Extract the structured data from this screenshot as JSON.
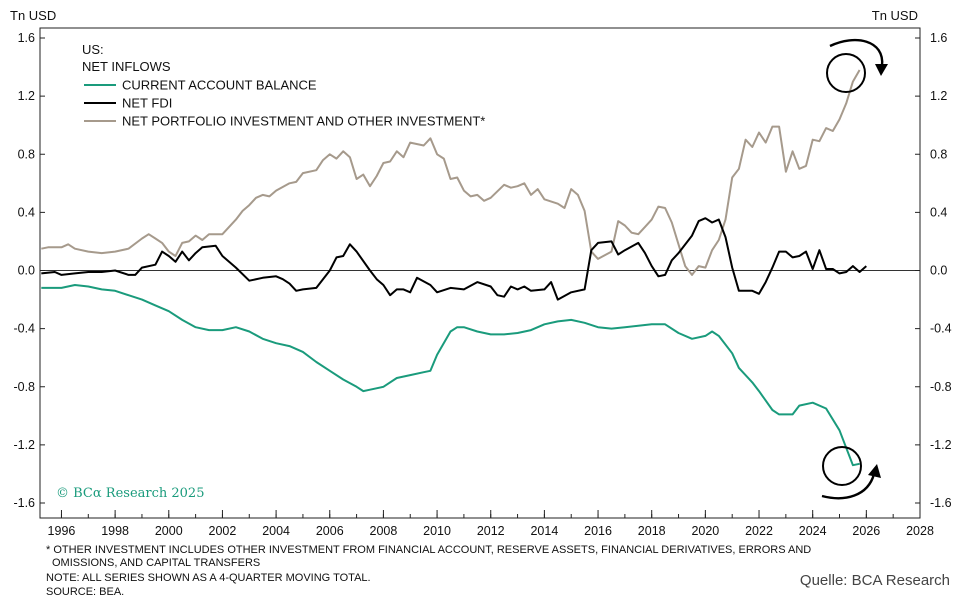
{
  "chart_data": {
    "type": "line",
    "title": "US:",
    "subtitle": "NET INFLOWS",
    "y_unit_left": "Tn USD",
    "y_unit_right": "Tn USD",
    "ylim": [
      -1.6,
      1.6
    ],
    "yticks": [
      1.6,
      1.2,
      0.8,
      0.4,
      0.0,
      -0.4,
      -0.8,
      -1.2,
      -1.6
    ],
    "ytick_labels": [
      "1.6",
      "1.2",
      "0.8",
      "0.4",
      "0.0",
      "-0.4",
      "-0.8",
      "-1.2",
      "-1.6"
    ],
    "xlim": [
      1995.2,
      2028.0
    ],
    "xticks": [
      1996,
      1998,
      2000,
      2002,
      2004,
      2006,
      2008,
      2010,
      2012,
      2014,
      2016,
      2018,
      2020,
      2022,
      2024,
      2026,
      2028
    ],
    "xtick_labels": [
      "1996",
      "1998",
      "2000",
      "2002",
      "2004",
      "2006",
      "2008",
      "2010",
      "2012",
      "2014",
      "2016",
      "2018",
      "2020",
      "2022",
      "2024",
      "2026",
      "2028"
    ],
    "legend_position": "top-left",
    "series": [
      {
        "name": "CURRENT ACCOUNT BALANCE",
        "color": "#1a9b7c",
        "points": [
          [
            1995.25,
            -0.12
          ],
          [
            1996.0,
            -0.12
          ],
          [
            1996.5,
            -0.1
          ],
          [
            1997.0,
            -0.11
          ],
          [
            1997.5,
            -0.13
          ],
          [
            1998.0,
            -0.14
          ],
          [
            1998.5,
            -0.17
          ],
          [
            1999.0,
            -0.2
          ],
          [
            1999.5,
            -0.24
          ],
          [
            2000.0,
            -0.28
          ],
          [
            2000.5,
            -0.34
          ],
          [
            2001.0,
            -0.39
          ],
          [
            2001.5,
            -0.41
          ],
          [
            2002.0,
            -0.41
          ],
          [
            2002.5,
            -0.39
          ],
          [
            2003.0,
            -0.42
          ],
          [
            2003.5,
            -0.47
          ],
          [
            2004.0,
            -0.5
          ],
          [
            2004.5,
            -0.52
          ],
          [
            2005.0,
            -0.56
          ],
          [
            2005.5,
            -0.63
          ],
          [
            2006.0,
            -0.69
          ],
          [
            2006.5,
            -0.75
          ],
          [
            2007.0,
            -0.8
          ],
          [
            2007.25,
            -0.83
          ],
          [
            2007.5,
            -0.82
          ],
          [
            2008.0,
            -0.8
          ],
          [
            2008.5,
            -0.74
          ],
          [
            2009.0,
            -0.72
          ],
          [
            2009.5,
            -0.7
          ],
          [
            2009.75,
            -0.69
          ],
          [
            2010.0,
            -0.58
          ],
          [
            2010.5,
            -0.42
          ],
          [
            2010.75,
            -0.39
          ],
          [
            2011.0,
            -0.39
          ],
          [
            2011.5,
            -0.42
          ],
          [
            2012.0,
            -0.44
          ],
          [
            2012.5,
            -0.44
          ],
          [
            2013.0,
            -0.43
          ],
          [
            2013.5,
            -0.41
          ],
          [
            2014.0,
            -0.37
          ],
          [
            2014.5,
            -0.35
          ],
          [
            2015.0,
            -0.34
          ],
          [
            2015.5,
            -0.36
          ],
          [
            2016.0,
            -0.39
          ],
          [
            2016.5,
            -0.4
          ],
          [
            2017.0,
            -0.39
          ],
          [
            2017.5,
            -0.38
          ],
          [
            2018.0,
            -0.37
          ],
          [
            2018.5,
            -0.37
          ],
          [
            2019.0,
            -0.43
          ],
          [
            2019.5,
            -0.47
          ],
          [
            2020.0,
            -0.45
          ],
          [
            2020.25,
            -0.42
          ],
          [
            2020.5,
            -0.45
          ],
          [
            2021.0,
            -0.57
          ],
          [
            2021.25,
            -0.67
          ],
          [
            2021.75,
            -0.77
          ],
          [
            2022.0,
            -0.83
          ],
          [
            2022.5,
            -0.96
          ],
          [
            2022.75,
            -0.99
          ],
          [
            2023.25,
            -0.99
          ],
          [
            2023.5,
            -0.93
          ],
          [
            2024.0,
            -0.91
          ],
          [
            2024.5,
            -0.95
          ],
          [
            2025.0,
            -1.1
          ],
          [
            2025.25,
            -1.22
          ],
          [
            2025.5,
            -1.34
          ],
          [
            2025.75,
            -1.33
          ]
        ]
      },
      {
        "name": "NET FDI",
        "color": "#000000",
        "points": [
          [
            1995.25,
            -0.02
          ],
          [
            1995.75,
            -0.01
          ],
          [
            1996.0,
            -0.03
          ],
          [
            1996.5,
            -0.02
          ],
          [
            1997.0,
            -0.01
          ],
          [
            1997.5,
            -0.01
          ],
          [
            1998.0,
            0.0
          ],
          [
            1998.5,
            -0.03
          ],
          [
            1998.75,
            -0.03
          ],
          [
            1999.0,
            0.02
          ],
          [
            1999.5,
            0.04
          ],
          [
            1999.75,
            0.13
          ],
          [
            2000.0,
            0.1
          ],
          [
            2000.25,
            0.06
          ],
          [
            2000.5,
            0.13
          ],
          [
            2000.75,
            0.07
          ],
          [
            2001.0,
            0.12
          ],
          [
            2001.25,
            0.16
          ],
          [
            2001.75,
            0.17
          ],
          [
            2002.0,
            0.1
          ],
          [
            2002.5,
            0.02
          ],
          [
            2003.0,
            -0.07
          ],
          [
            2003.5,
            -0.05
          ],
          [
            2004.0,
            -0.04
          ],
          [
            2004.25,
            -0.06
          ],
          [
            2004.5,
            -0.09
          ],
          [
            2004.75,
            -0.14
          ],
          [
            2005.0,
            -0.13
          ],
          [
            2005.5,
            -0.12
          ],
          [
            2006.0,
            0.0
          ],
          [
            2006.25,
            0.09
          ],
          [
            2006.5,
            0.1
          ],
          [
            2006.75,
            0.18
          ],
          [
            2007.0,
            0.13
          ],
          [
            2007.5,
            0.0
          ],
          [
            2007.75,
            -0.06
          ],
          [
            2008.0,
            -0.1
          ],
          [
            2008.25,
            -0.17
          ],
          [
            2008.5,
            -0.13
          ],
          [
            2008.75,
            -0.13
          ],
          [
            2009.0,
            -0.15
          ],
          [
            2009.25,
            -0.05
          ],
          [
            2009.75,
            -0.1
          ],
          [
            2010.0,
            -0.15
          ],
          [
            2010.5,
            -0.12
          ],
          [
            2011.0,
            -0.13
          ],
          [
            2011.5,
            -0.08
          ],
          [
            2012.0,
            -0.11
          ],
          [
            2012.25,
            -0.17
          ],
          [
            2012.5,
            -0.18
          ],
          [
            2012.75,
            -0.11
          ],
          [
            2013.0,
            -0.13
          ],
          [
            2013.25,
            -0.11
          ],
          [
            2013.5,
            -0.14
          ],
          [
            2014.0,
            -0.13
          ],
          [
            2014.25,
            -0.08
          ],
          [
            2014.5,
            -0.2
          ],
          [
            2015.0,
            -0.15
          ],
          [
            2015.5,
            -0.13
          ],
          [
            2015.75,
            0.14
          ],
          [
            2016.0,
            0.19
          ],
          [
            2016.5,
            0.2
          ],
          [
            2016.75,
            0.11
          ],
          [
            2017.0,
            0.14
          ],
          [
            2017.5,
            0.19
          ],
          [
            2017.75,
            0.12
          ],
          [
            2018.0,
            0.03
          ],
          [
            2018.25,
            -0.04
          ],
          [
            2018.5,
            -0.03
          ],
          [
            2018.75,
            0.07
          ],
          [
            2019.0,
            0.12
          ],
          [
            2019.5,
            0.24
          ],
          [
            2019.75,
            0.34
          ],
          [
            2020.0,
            0.36
          ],
          [
            2020.25,
            0.33
          ],
          [
            2020.5,
            0.35
          ],
          [
            2020.75,
            0.23
          ],
          [
            2021.0,
            0.02
          ],
          [
            2021.25,
            -0.14
          ],
          [
            2021.75,
            -0.14
          ],
          [
            2022.0,
            -0.16
          ],
          [
            2022.25,
            -0.08
          ],
          [
            2022.5,
            0.02
          ],
          [
            2022.75,
            0.13
          ],
          [
            2023.0,
            0.13
          ],
          [
            2023.25,
            0.09
          ],
          [
            2023.5,
            0.1
          ],
          [
            2023.75,
            0.13
          ],
          [
            2024.0,
            0.01
          ],
          [
            2024.25,
            0.14
          ],
          [
            2024.5,
            0.01
          ],
          [
            2024.75,
            0.01
          ],
          [
            2025.0,
            -0.02
          ],
          [
            2025.25,
            -0.01
          ],
          [
            2025.5,
            0.03
          ],
          [
            2025.75,
            -0.01
          ],
          [
            2026.0,
            0.03
          ]
        ]
      },
      {
        "name": "NET PORTFOLIO INVESTMENT AND OTHER INVESTMENT*",
        "color": "#a69a8c",
        "points": [
          [
            1995.25,
            0.15
          ],
          [
            1995.5,
            0.16
          ],
          [
            1996.0,
            0.16
          ],
          [
            1996.25,
            0.18
          ],
          [
            1996.5,
            0.15
          ],
          [
            1997.0,
            0.13
          ],
          [
            1997.5,
            0.12
          ],
          [
            1998.0,
            0.13
          ],
          [
            1998.5,
            0.15
          ],
          [
            1999.0,
            0.22
          ],
          [
            1999.25,
            0.25
          ],
          [
            1999.5,
            0.22
          ],
          [
            1999.75,
            0.19
          ],
          [
            2000.0,
            0.13
          ],
          [
            2000.25,
            0.1
          ],
          [
            2000.5,
            0.19
          ],
          [
            2000.75,
            0.2
          ],
          [
            2001.0,
            0.24
          ],
          [
            2001.25,
            0.21
          ],
          [
            2001.5,
            0.25
          ],
          [
            2002.0,
            0.25
          ],
          [
            2002.25,
            0.3
          ],
          [
            2002.5,
            0.35
          ],
          [
            2002.75,
            0.41
          ],
          [
            2003.0,
            0.45
          ],
          [
            2003.25,
            0.5
          ],
          [
            2003.5,
            0.52
          ],
          [
            2003.75,
            0.51
          ],
          [
            2004.0,
            0.55
          ],
          [
            2004.5,
            0.6
          ],
          [
            2004.75,
            0.61
          ],
          [
            2005.0,
            0.67
          ],
          [
            2005.5,
            0.69
          ],
          [
            2005.75,
            0.76
          ],
          [
            2006.0,
            0.8
          ],
          [
            2006.25,
            0.77
          ],
          [
            2006.5,
            0.82
          ],
          [
            2006.75,
            0.78
          ],
          [
            2007.0,
            0.63
          ],
          [
            2007.25,
            0.66
          ],
          [
            2007.5,
            0.58
          ],
          [
            2007.75,
            0.65
          ],
          [
            2008.0,
            0.74
          ],
          [
            2008.25,
            0.75
          ],
          [
            2008.5,
            0.82
          ],
          [
            2008.75,
            0.78
          ],
          [
            2009.0,
            0.88
          ],
          [
            2009.5,
            0.86
          ],
          [
            2009.75,
            0.91
          ],
          [
            2010.0,
            0.8
          ],
          [
            2010.25,
            0.77
          ],
          [
            2010.5,
            0.63
          ],
          [
            2010.75,
            0.64
          ],
          [
            2011.0,
            0.55
          ],
          [
            2011.25,
            0.51
          ],
          [
            2011.5,
            0.52
          ],
          [
            2011.75,
            0.48
          ],
          [
            2012.0,
            0.5
          ],
          [
            2012.5,
            0.59
          ],
          [
            2012.75,
            0.57
          ],
          [
            2013.0,
            0.58
          ],
          [
            2013.25,
            0.6
          ],
          [
            2013.5,
            0.52
          ],
          [
            2013.75,
            0.56
          ],
          [
            2014.0,
            0.49
          ],
          [
            2014.5,
            0.46
          ],
          [
            2014.75,
            0.43
          ],
          [
            2015.0,
            0.56
          ],
          [
            2015.25,
            0.52
          ],
          [
            2015.5,
            0.41
          ],
          [
            2015.75,
            0.13
          ],
          [
            2016.0,
            0.08
          ],
          [
            2016.5,
            0.13
          ],
          [
            2016.75,
            0.34
          ],
          [
            2017.0,
            0.31
          ],
          [
            2017.25,
            0.26
          ],
          [
            2017.5,
            0.25
          ],
          [
            2017.75,
            0.3
          ],
          [
            2018.0,
            0.35
          ],
          [
            2018.25,
            0.44
          ],
          [
            2018.5,
            0.43
          ],
          [
            2018.75,
            0.33
          ],
          [
            2019.0,
            0.18
          ],
          [
            2019.25,
            0.03
          ],
          [
            2019.5,
            -0.03
          ],
          [
            2019.75,
            0.03
          ],
          [
            2020.0,
            0.02
          ],
          [
            2020.25,
            0.14
          ],
          [
            2020.5,
            0.21
          ],
          [
            2020.75,
            0.35
          ],
          [
            2021.0,
            0.64
          ],
          [
            2021.25,
            0.7
          ],
          [
            2021.5,
            0.9
          ],
          [
            2021.75,
            0.85
          ],
          [
            2022.0,
            0.95
          ],
          [
            2022.25,
            0.88
          ],
          [
            2022.5,
            0.99
          ],
          [
            2022.75,
            0.99
          ],
          [
            2023.0,
            0.68
          ],
          [
            2023.25,
            0.82
          ],
          [
            2023.5,
            0.7
          ],
          [
            2023.75,
            0.72
          ],
          [
            2024.0,
            0.9
          ],
          [
            2024.25,
            0.89
          ],
          [
            2024.5,
            0.98
          ],
          [
            2024.75,
            0.96
          ],
          [
            2025.0,
            1.04
          ],
          [
            2025.25,
            1.15
          ],
          [
            2025.5,
            1.3
          ],
          [
            2025.75,
            1.38
          ]
        ]
      }
    ]
  },
  "watermark": "© BCα Research 2025",
  "footnotes": [
    "* OTHER INVESTMENT INCLUDES OTHER INVESTMENT FROM FINANCIAL ACCOUNT, RESERVE ASSETS, FINANCIAL DERIVATIVES, ERRORS AND",
    "OMISSIONS, AND CAPITAL TRANSFERS",
    "NOTE: ALL SERIES SHOWN AS A 4-QUARTER MOVING TOTAL.",
    "SOURCE: BEA."
  ],
  "source_text": "Quelle: BCA Research"
}
